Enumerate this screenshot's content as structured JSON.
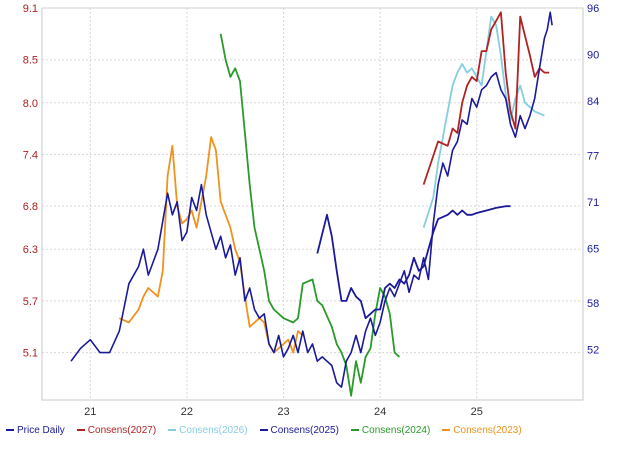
{
  "chart_data": {
    "type": "line",
    "title": "",
    "xlabel": "",
    "ylabel_left": "",
    "ylabel_right": "",
    "grid": true,
    "legend_position": "bottom",
    "x_tick_labels": [
      "21",
      "22",
      "23",
      "24",
      "25"
    ],
    "x_tick_values": [
      21,
      22,
      23,
      24,
      25
    ],
    "xlim": [
      20.5,
      26.1
    ],
    "left_axis": {
      "ticks": [
        "9.1",
        "8.5",
        "8.0",
        "7.4",
        "6.8",
        "6.3",
        "5.7",
        "5.1"
      ],
      "ylim": [
        4.55,
        9.1
      ]
    },
    "right_axis": {
      "ticks": [
        "96",
        "90",
        "84",
        "77",
        "71",
        "65",
        "58",
        "52"
      ],
      "ylim": [
        45.5,
        96
      ]
    },
    "colors": {
      "price": "#1a1a9a",
      "cons2027": "#b22222",
      "cons2026": "#87cde0",
      "cons2025": "#1a1a9a",
      "cons2024": "#2a9a2a",
      "cons2023": "#f0921e"
    },
    "series": [
      {
        "name": "Price Daily",
        "axis": "left",
        "points": [
          [
            20.8,
            5.0
          ],
          [
            20.9,
            5.15
          ],
          [
            21.0,
            5.25
          ],
          [
            21.1,
            5.1
          ],
          [
            21.2,
            5.1
          ],
          [
            21.3,
            5.35
          ],
          [
            21.4,
            5.9
          ],
          [
            21.5,
            6.1
          ],
          [
            21.55,
            6.3
          ],
          [
            21.6,
            6.0
          ],
          [
            21.7,
            6.3
          ],
          [
            21.8,
            6.95
          ],
          [
            21.85,
            6.7
          ],
          [
            21.9,
            6.85
          ],
          [
            21.95,
            6.4
          ],
          [
            22.0,
            6.5
          ],
          [
            22.05,
            6.9
          ],
          [
            22.1,
            6.75
          ],
          [
            22.15,
            7.05
          ],
          [
            22.2,
            6.7
          ],
          [
            22.3,
            6.3
          ],
          [
            22.35,
            6.45
          ],
          [
            22.4,
            6.2
          ],
          [
            22.45,
            6.35
          ],
          [
            22.5,
            6.0
          ],
          [
            22.55,
            6.2
          ],
          [
            22.6,
            5.7
          ],
          [
            22.65,
            5.85
          ],
          [
            22.7,
            5.6
          ],
          [
            22.75,
            5.5
          ],
          [
            22.8,
            5.55
          ],
          [
            22.85,
            5.2
          ],
          [
            22.9,
            5.1
          ],
          [
            22.95,
            5.3
          ],
          [
            23.0,
            5.05
          ],
          [
            23.05,
            5.15
          ],
          [
            23.1,
            5.3
          ],
          [
            23.15,
            5.1
          ],
          [
            23.2,
            5.35
          ],
          [
            23.25,
            5.1
          ],
          [
            23.3,
            5.2
          ],
          [
            23.35,
            5.0
          ],
          [
            23.4,
            5.05
          ],
          [
            23.45,
            5.0
          ],
          [
            23.5,
            4.95
          ],
          [
            23.55,
            4.75
          ],
          [
            23.6,
            4.7
          ],
          [
            23.65,
            5.0
          ],
          [
            23.7,
            5.1
          ],
          [
            23.75,
            5.3
          ],
          [
            23.8,
            5.1
          ],
          [
            23.85,
            5.35
          ],
          [
            23.9,
            5.5
          ],
          [
            23.95,
            5.3
          ],
          [
            24.0,
            5.45
          ],
          [
            24.05,
            5.7
          ],
          [
            24.1,
            5.85
          ],
          [
            24.15,
            5.75
          ],
          [
            24.2,
            5.9
          ],
          [
            24.25,
            6.05
          ],
          [
            24.3,
            5.8
          ],
          [
            24.35,
            6.0
          ],
          [
            24.4,
            5.95
          ],
          [
            24.45,
            6.2
          ],
          [
            24.5,
            5.95
          ],
          [
            24.55,
            6.6
          ],
          [
            24.6,
            7.05
          ],
          [
            24.65,
            7.3
          ],
          [
            24.7,
            7.15
          ],
          [
            24.75,
            7.45
          ],
          [
            24.8,
            7.55
          ],
          [
            24.85,
            7.8
          ],
          [
            24.9,
            7.75
          ],
          [
            24.95,
            8.05
          ],
          [
            25.0,
            7.95
          ],
          [
            25.05,
            8.15
          ],
          [
            25.1,
            8.2
          ],
          [
            25.15,
            8.3
          ],
          [
            25.2,
            8.35
          ],
          [
            25.25,
            8.15
          ],
          [
            25.3,
            8.05
          ],
          [
            25.35,
            7.75
          ],
          [
            25.4,
            7.6
          ],
          [
            25.45,
            7.85
          ],
          [
            25.5,
            7.7
          ],
          [
            25.55,
            7.85
          ],
          [
            25.6,
            8.05
          ],
          [
            25.65,
            8.4
          ],
          [
            25.7,
            8.75
          ],
          [
            25.73,
            8.85
          ],
          [
            25.76,
            9.05
          ],
          [
            25.78,
            8.9
          ]
        ]
      },
      {
        "name": "Consens(2027)",
        "axis": "left",
        "points": [
          [
            24.45,
            7.05
          ],
          [
            24.6,
            7.55
          ],
          [
            24.7,
            7.5
          ],
          [
            24.75,
            7.7
          ],
          [
            24.8,
            7.65
          ],
          [
            24.85,
            8.0
          ],
          [
            24.9,
            8.2
          ],
          [
            24.95,
            8.3
          ],
          [
            25.0,
            8.25
          ],
          [
            25.05,
            8.6
          ],
          [
            25.1,
            8.6
          ],
          [
            25.15,
            8.85
          ],
          [
            25.2,
            8.95
          ],
          [
            25.25,
            9.05
          ],
          [
            25.3,
            8.35
          ],
          [
            25.35,
            7.9
          ],
          [
            25.4,
            7.7
          ],
          [
            25.45,
            9.0
          ],
          [
            25.55,
            8.55
          ],
          [
            25.6,
            8.3
          ],
          [
            25.65,
            8.4
          ],
          [
            25.7,
            8.35
          ],
          [
            25.75,
            8.35
          ]
        ]
      },
      {
        "name": "Consens(2026)",
        "axis": "left",
        "points": [
          [
            24.45,
            6.55
          ],
          [
            24.55,
            6.9
          ],
          [
            24.6,
            7.3
          ],
          [
            24.65,
            7.6
          ],
          [
            24.7,
            7.9
          ],
          [
            24.75,
            8.2
          ],
          [
            24.8,
            8.35
          ],
          [
            24.85,
            8.45
          ],
          [
            24.9,
            8.35
          ],
          [
            24.95,
            8.4
          ],
          [
            25.0,
            8.3
          ],
          [
            25.05,
            8.2
          ],
          [
            25.1,
            8.6
          ],
          [
            25.15,
            9.0
          ],
          [
            25.2,
            8.9
          ],
          [
            25.25,
            8.55
          ],
          [
            25.3,
            8.1
          ],
          [
            25.35,
            7.8
          ],
          [
            25.4,
            8.05
          ],
          [
            25.45,
            8.2
          ],
          [
            25.5,
            8.0
          ],
          [
            25.55,
            7.95
          ],
          [
            25.6,
            7.9
          ],
          [
            25.7,
            7.85
          ]
        ]
      },
      {
        "name": "Consens(2025)",
        "axis": "left",
        "points": [
          [
            23.35,
            6.25
          ],
          [
            23.45,
            6.7
          ],
          [
            23.5,
            6.45
          ],
          [
            23.55,
            6.05
          ],
          [
            23.6,
            5.7
          ],
          [
            23.65,
            5.7
          ],
          [
            23.7,
            5.85
          ],
          [
            23.75,
            5.75
          ],
          [
            23.8,
            5.7
          ],
          [
            23.85,
            5.5
          ],
          [
            23.9,
            5.55
          ],
          [
            23.95,
            5.6
          ],
          [
            24.0,
            5.6
          ],
          [
            24.05,
            5.85
          ],
          [
            24.1,
            5.9
          ],
          [
            24.15,
            5.85
          ],
          [
            24.2,
            5.95
          ],
          [
            24.25,
            5.9
          ],
          [
            24.3,
            6.0
          ],
          [
            24.35,
            6.2
          ],
          [
            24.4,
            6.05
          ],
          [
            24.45,
            6.1
          ],
          [
            24.5,
            6.3
          ],
          [
            24.55,
            6.5
          ],
          [
            24.6,
            6.65
          ],
          [
            24.7,
            6.7
          ],
          [
            24.75,
            6.75
          ],
          [
            24.8,
            6.7
          ],
          [
            24.85,
            6.75
          ],
          [
            24.9,
            6.7
          ],
          [
            24.95,
            6.7
          ],
          [
            25.0,
            6.72
          ],
          [
            25.1,
            6.75
          ],
          [
            25.2,
            6.78
          ],
          [
            25.3,
            6.8
          ],
          [
            25.35,
            6.8
          ]
        ]
      },
      {
        "name": "Consens(2024)",
        "axis": "left",
        "points": [
          [
            22.35,
            8.8
          ],
          [
            22.4,
            8.5
          ],
          [
            22.45,
            8.3
          ],
          [
            22.5,
            8.4
          ],
          [
            22.55,
            8.25
          ],
          [
            22.6,
            7.65
          ],
          [
            22.65,
            7.05
          ],
          [
            22.7,
            6.55
          ],
          [
            22.75,
            6.3
          ],
          [
            22.8,
            6.05
          ],
          [
            22.85,
            5.7
          ],
          [
            22.9,
            5.6
          ],
          [
            23.0,
            5.5
          ],
          [
            23.1,
            5.45
          ],
          [
            23.15,
            5.5
          ],
          [
            23.2,
            5.9
          ],
          [
            23.3,
            5.95
          ],
          [
            23.35,
            5.7
          ],
          [
            23.4,
            5.65
          ],
          [
            23.5,
            5.4
          ],
          [
            23.55,
            5.2
          ],
          [
            23.6,
            5.1
          ],
          [
            23.65,
            4.95
          ],
          [
            23.7,
            4.6
          ],
          [
            23.75,
            5.0
          ],
          [
            23.8,
            4.75
          ],
          [
            23.85,
            5.05
          ],
          [
            23.9,
            5.15
          ],
          [
            23.95,
            5.55
          ],
          [
            24.0,
            5.85
          ],
          [
            24.05,
            5.75
          ],
          [
            24.1,
            5.55
          ],
          [
            24.15,
            5.1
          ],
          [
            24.2,
            5.05
          ]
        ]
      },
      {
        "name": "Consens(2023)",
        "axis": "left",
        "points": [
          [
            21.3,
            5.5
          ],
          [
            21.4,
            5.45
          ],
          [
            21.5,
            5.6
          ],
          [
            21.55,
            5.75
          ],
          [
            21.6,
            5.85
          ],
          [
            21.7,
            5.75
          ],
          [
            21.75,
            6.05
          ],
          [
            21.8,
            7.15
          ],
          [
            21.85,
            7.5
          ],
          [
            21.9,
            6.8
          ],
          [
            21.95,
            6.6
          ],
          [
            22.0,
            6.65
          ],
          [
            22.05,
            6.75
          ],
          [
            22.1,
            6.55
          ],
          [
            22.2,
            7.15
          ],
          [
            22.25,
            7.6
          ],
          [
            22.3,
            7.45
          ],
          [
            22.35,
            6.85
          ],
          [
            22.4,
            6.7
          ],
          [
            22.45,
            6.55
          ],
          [
            22.5,
            6.3
          ],
          [
            22.55,
            6.15
          ],
          [
            22.6,
            5.75
          ],
          [
            22.65,
            5.4
          ],
          [
            22.7,
            5.45
          ],
          [
            22.75,
            5.5
          ],
          [
            22.8,
            5.45
          ],
          [
            22.85,
            5.2
          ],
          [
            22.9,
            5.1
          ],
          [
            22.95,
            5.15
          ],
          [
            23.0,
            5.2
          ],
          [
            23.05,
            5.25
          ],
          [
            23.1,
            5.1
          ],
          [
            23.15,
            5.35
          ],
          [
            23.2,
            5.3
          ]
        ]
      }
    ]
  }
}
